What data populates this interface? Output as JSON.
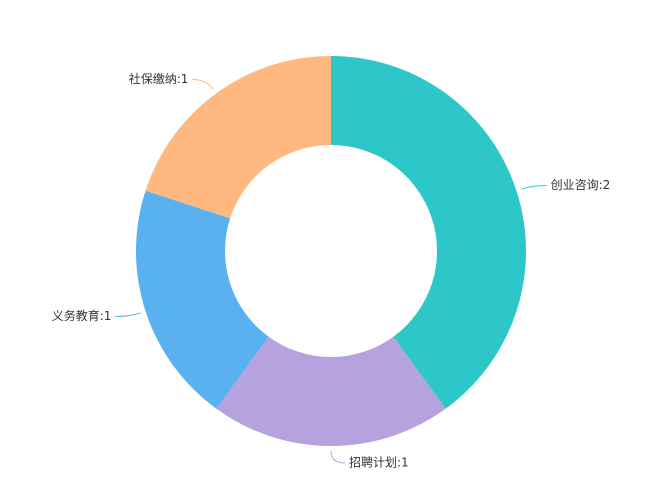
{
  "chart_data": {
    "type": "pie",
    "variant": "donut",
    "categories": [
      "创业咨询",
      "招聘计划",
      "义务教育",
      "社保缴纳"
    ],
    "values": [
      2,
      1,
      1,
      1
    ],
    "labels": [
      "创业咨询:2",
      "招聘计划:1",
      "义务教育:1",
      "社保缴纳:1"
    ],
    "colors": [
      "#2ec7c9",
      "#b6a2de",
      "#5ab1ef",
      "#ffb980"
    ],
    "title": "",
    "legend": "none"
  }
}
